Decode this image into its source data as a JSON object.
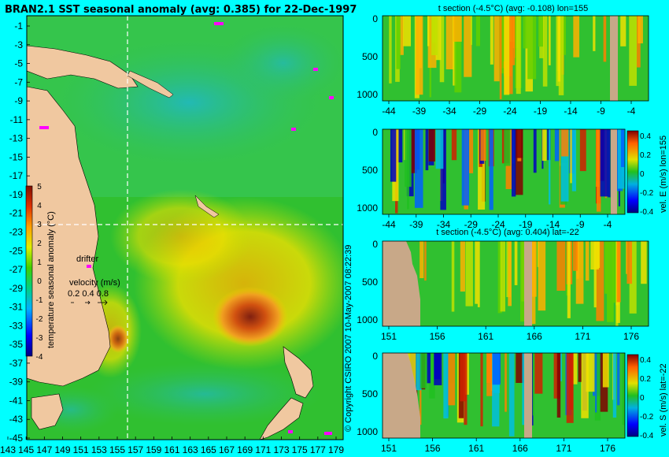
{
  "title": "BRAN2.1 SST seasonal anomaly (avg: 0.385) for 22-Dec-1997",
  "copyright": "© Copyright CSIRO 2007 10-May-2007 08:22:39",
  "colors": {
    "background": "#00ffff",
    "land": "#f0c8a0",
    "section_land": "#c8a888",
    "crosshair": "#ffffff",
    "drifter": "#ff00ff"
  },
  "map": {
    "lat_ticks": [
      "-1",
      "-3",
      "-5",
      "-7",
      "-9",
      "-11",
      "-13",
      "-15",
      "-17",
      "-19",
      "-21",
      "-23",
      "-25",
      "-27",
      "-29",
      "-31",
      "-33",
      "-35",
      "-37",
      "-39",
      "-41",
      "-43",
      "-45"
    ],
    "lon_ticks": [
      "143",
      "145",
      "147",
      "149",
      "151",
      "153",
      "155",
      "157",
      "159",
      "161",
      "163",
      "165",
      "167",
      "169",
      "171",
      "173",
      "175",
      "177",
      "179"
    ],
    "colorbar": {
      "label": "temperature seasonal anomaly (°C)",
      "ticks": [
        "5",
        "4",
        "3",
        "2",
        "1",
        "0",
        "-1",
        "-2",
        "-3",
        "-4"
      ],
      "range": [
        -4,
        5
      ]
    },
    "drifter_label": "drifter",
    "velocity": {
      "label": "velocity (m/s)",
      "scale": "0.2 0.4 0.8"
    },
    "crosshair": {
      "lon": 155,
      "lat": -22
    }
  },
  "panels": {
    "p1": {
      "title": "t section (-4.5°C) (avg: -0.108) lon=155",
      "xticks": [
        "-44",
        "-39",
        "-34",
        "-29",
        "-24",
        "-19",
        "-14",
        "-9",
        "-4"
      ],
      "yticks": [
        "0",
        "500",
        "1000"
      ]
    },
    "p2": {
      "title": "",
      "xticks": [
        "-44",
        "-39",
        "-34",
        "-29",
        "-24",
        "-19",
        "-14",
        "-9",
        "-4"
      ],
      "yticks": [
        "0",
        "500",
        "1000"
      ],
      "cb_label": "vel. E (m/s) lon=155",
      "cb_ticks": [
        "0.4",
        "0.2",
        "0",
        "-0.2",
        "-0.4"
      ]
    },
    "p3": {
      "title": "t section (-4.5°C) (avg: 0.404) lat=-22",
      "xticks": [
        "151",
        "156",
        "161",
        "166",
        "171",
        "176"
      ],
      "yticks": [
        "0",
        "500",
        "1000"
      ]
    },
    "p4": {
      "title": "",
      "xticks": [
        "151",
        "156",
        "161",
        "166",
        "171",
        "176"
      ],
      "yticks": [
        "0",
        "500",
        "1000"
      ],
      "cb_label": "vel. S (m/s) lat=-22",
      "cb_ticks": [
        "0.4",
        "0.2",
        "0",
        "-0.2",
        "-0.4"
      ]
    }
  },
  "chart_data": [
    {
      "type": "heatmap",
      "title": "BRAN2.1 SST seasonal anomaly (avg: 0.385) for 22-Dec-1997",
      "xlabel": "",
      "ylabel": "",
      "xlim": [
        143,
        180
      ],
      "ylim": [
        -45,
        0
      ],
      "value_range": [
        -4,
        5
      ],
      "colorbar_label": "temperature seasonal anomaly (°C)"
    },
    {
      "type": "heatmap",
      "title": "t section (-4.5°C) (avg: -0.108) lon=155",
      "xlim": [
        -45,
        -1
      ],
      "ylim": [
        1050,
        0
      ]
    },
    {
      "type": "heatmap",
      "title": "",
      "xlim": [
        -45,
        -1
      ],
      "ylim": [
        1050,
        0
      ],
      "value_range": [
        -0.4,
        0.4
      ],
      "colorbar_label": "vel. E (m/s) lon=155"
    },
    {
      "type": "heatmap",
      "title": "t section (-4.5°C) (avg: 0.404) lat=-22",
      "xlim": [
        150,
        180
      ],
      "ylim": [
        1050,
        0
      ]
    },
    {
      "type": "heatmap",
      "title": "",
      "xlim": [
        150,
        180
      ],
      "ylim": [
        1050,
        0
      ],
      "value_range": [
        -0.4,
        0.4
      ],
      "colorbar_label": "vel. S (m/s) lat=-22"
    }
  ]
}
